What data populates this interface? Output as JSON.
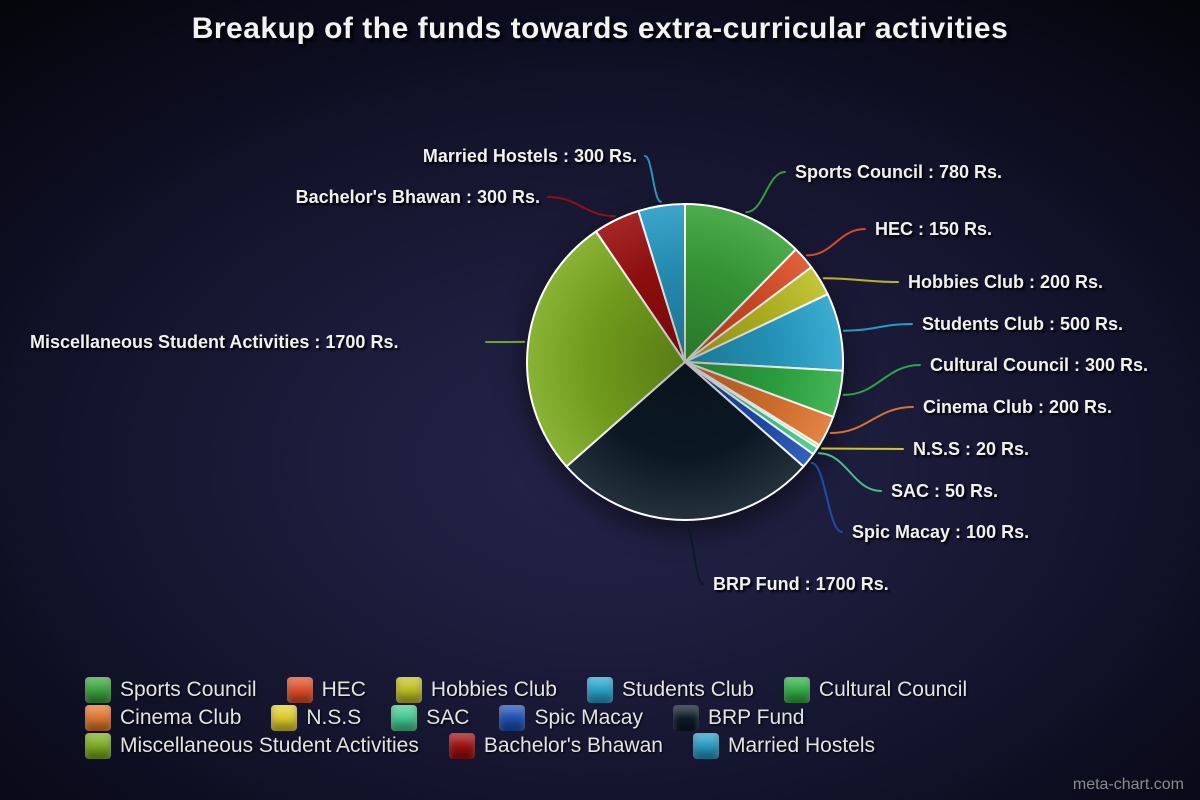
{
  "watermark": "meta-chart.com",
  "chart_data": {
    "type": "pie",
    "title": "Breakup of the funds towards extra-curricular activities",
    "unit": "Rs.",
    "total": 6300,
    "legend_position": "bottom",
    "slices": [
      {
        "label": "Sports Council",
        "value": 780,
        "color": "#3aa33a",
        "callout": "Sports Council : 780 Rs."
      },
      {
        "label": "HEC",
        "value": 150,
        "color": "#dd4f27",
        "callout": "HEC : 150 Rs."
      },
      {
        "label": "Hobbies Club",
        "value": 200,
        "color": "#bebe23",
        "callout": "Hobbies Club : 200 Rs."
      },
      {
        "label": "Students Club",
        "value": 500,
        "color": "#27a3cb",
        "callout": "Students Club : 500 Rs."
      },
      {
        "label": "Cultural Council",
        "value": 300,
        "color": "#2fae44",
        "callout": "Cultural Council : 300 Rs."
      },
      {
        "label": "Cinema Club",
        "value": 200,
        "color": "#e0762f",
        "callout": "Cinema Club : 200 Rs."
      },
      {
        "label": "N.S.S",
        "value": 20,
        "color": "#dfcb2c",
        "callout": "N.S.S : 20 Rs."
      },
      {
        "label": "SAC",
        "value": 50,
        "color": "#45c98f",
        "callout": "SAC : 50 Rs."
      },
      {
        "label": "Spic Macay",
        "value": 100,
        "color": "#1e4fb2",
        "callout": "Spic Macay : 100 Rs."
      },
      {
        "label": "BRP Fund",
        "value": 1700,
        "color": "#0c1a26",
        "callout": "BRP Fund : 1700 Rs."
      },
      {
        "label": "Miscellaneous Student Activities",
        "value": 1700,
        "color": "#7cab1f",
        "callout": "Miscellaneous Student Activities : 1700 Rs."
      },
      {
        "label": "Bachelor's Bhawan",
        "value": 300,
        "color": "#9c0f0f",
        "callout": "Bachelor's Bhawan : 300 Rs."
      },
      {
        "label": "Married Hostels",
        "value": 300,
        "color": "#279bc4",
        "callout": "Married Hostels : 300 Rs."
      }
    ]
  }
}
